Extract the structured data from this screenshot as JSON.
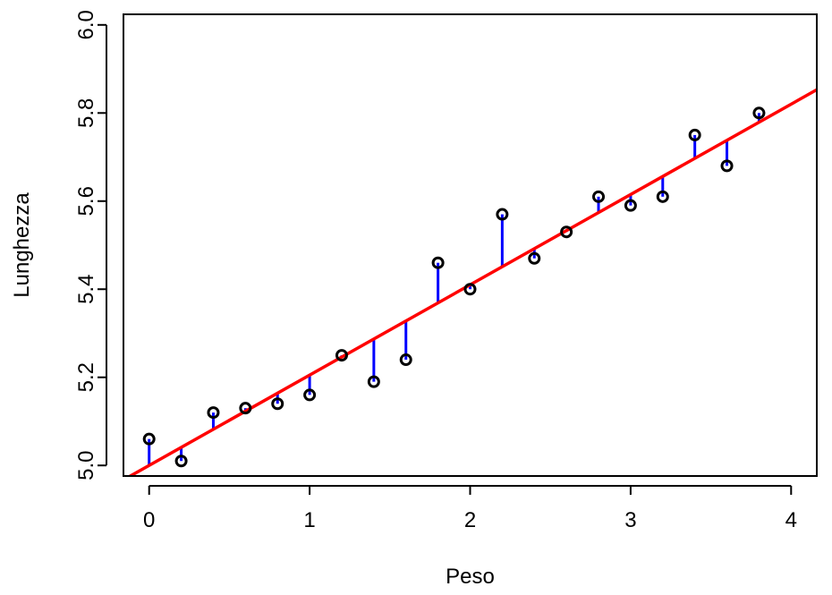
{
  "chart_data": {
    "type": "scatter",
    "title": "",
    "xlabel": "Peso",
    "ylabel": "Lunghezza",
    "xlim": [
      -0.16,
      4.16
    ],
    "ylim": [
      4.976,
      6.024
    ],
    "xticks": [
      0,
      1,
      2,
      3,
      4
    ],
    "xtick_labels": [
      "0",
      "1",
      "2",
      "3",
      "4"
    ],
    "yticks": [
      5.0,
      5.2,
      5.4,
      5.6,
      5.8,
      6.0
    ],
    "ytick_labels": [
      "5.0",
      "5.2",
      "5.4",
      "5.6",
      "5.8",
      "6.0"
    ],
    "grid": false,
    "points": {
      "x": [
        0,
        0.2,
        0.4,
        0.6,
        0.8,
        1.0,
        1.2,
        1.4,
        1.6,
        1.8,
        2.0,
        2.2,
        2.4,
        2.6,
        2.8,
        3.0,
        3.2,
        3.4,
        3.6,
        3.8
      ],
      "y": [
        5.06,
        5.01,
        5.12,
        5.13,
        5.14,
        5.16,
        5.25,
        5.19,
        5.24,
        5.46,
        5.4,
        5.57,
        5.47,
        5.53,
        5.61,
        5.59,
        5.61,
        5.75,
        5.68,
        5.8
      ],
      "color": "#000000"
    },
    "regression_line": {
      "intercept": 5.0,
      "slope": 0.205,
      "color": "#ff0000"
    },
    "residuals": {
      "color": "#0000ff"
    }
  }
}
